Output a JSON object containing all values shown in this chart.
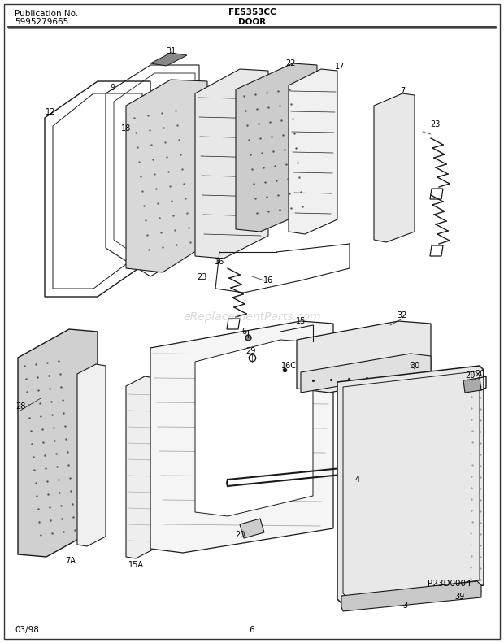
{
  "pub_label": "Publication No.",
  "pub_number": "5995279665",
  "model": "FES353CC",
  "section": "DOOR",
  "date": "03/98",
  "page": "6",
  "diagram_code": "P23D0004",
  "bg_color": "#ffffff",
  "text_color": "#000000",
  "line_color": "#1a1a1a",
  "title_fontsize": 7.5,
  "label_fontsize": 7,
  "watermark": "eReplacementParts.com",
  "watermark_color": "#bbbbbb",
  "watermark_alpha": 0.55
}
